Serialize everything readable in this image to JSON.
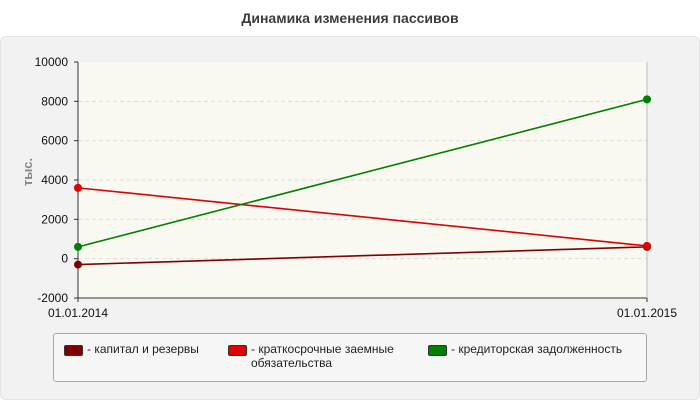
{
  "chart_data": {
    "type": "line",
    "title": "Динамика изменения пассивов",
    "ylabel": "тыс.",
    "xlabel": "",
    "x": [
      "01.01.2014",
      "01.01.2015"
    ],
    "ylim": [
      -2000,
      10000
    ],
    "yticks": [
      -2000,
      0,
      2000,
      4000,
      6000,
      8000,
      10000
    ],
    "grid": true,
    "legend_position": "bottom",
    "series": [
      {
        "name": "- капитал и резервы",
        "color": "#800000",
        "values": [
          -300,
          600
        ]
      },
      {
        "name": "- краткосрочные заемные обязательства",
        "color": "#e00000",
        "values": [
          3600,
          650
        ]
      },
      {
        "name": "- кредиторская задолженность",
        "color": "#008000",
        "values": [
          600,
          8100
        ]
      }
    ]
  }
}
